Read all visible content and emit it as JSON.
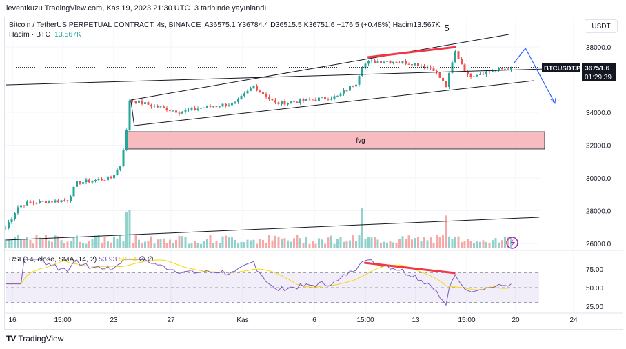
{
  "header": {
    "published": "leventkuzu TradingView.com, Kas 19, 2023 21:30 UTC+3 tarihinde yayınlandı"
  },
  "legend": {
    "symbol": "Bitcoin / TetherUS PERPETUAL CONTRACT, 4s, BINANCE",
    "ohlc": "A36575.1  Y36784.4  D36515.5  K36751.6  +176.5 (+0.48%)  Hacim13.567K",
    "volume_label": "Hacim · BTC",
    "volume_value": "13.567K"
  },
  "annotation_5": "5",
  "currency": "USDT",
  "fvg_label": "fvg",
  "price_tag": {
    "symbol": "BTCUSDT.P",
    "price": "36751.6",
    "countdown": "01:29:39"
  },
  "rsi": {
    "label": "RSI (14, close, SMA, 14, 2)",
    "value": "53.93",
    "sma": "50.04",
    "extra": "∅  ∅"
  },
  "footer": {
    "brand": "TradingView"
  },
  "colors": {
    "up": "#26a69a",
    "down": "#ef5350",
    "rsi": "#7e57c2",
    "rsi_sma": "#f5d90a",
    "fvg": "#f8bbc0",
    "red_line": "#f23645",
    "arrow": "#2962ff"
  },
  "chart_data": {
    "type": "candlestick",
    "y_ticks": [
      38000,
      34000,
      32000,
      30000,
      28000,
      26000
    ],
    "y_tick_labels": [
      "38000.0",
      "34000.0",
      "32000.0",
      "30000.0",
      "28000.0",
      "26000.0"
    ],
    "rsi_ticks": [
      "75.00",
      "50.00",
      "25.00"
    ],
    "x_ticks": [
      "16",
      "15:00",
      "23",
      "27",
      "Kas",
      "6",
      "15:00",
      "13",
      "15:00",
      "20",
      "24"
    ],
    "close_anchors": [
      [
        0,
        26970
      ],
      [
        4,
        28230
      ],
      [
        6,
        28440
      ],
      [
        20,
        28650
      ],
      [
        23,
        29700
      ],
      [
        34,
        30000
      ],
      [
        37,
        30760
      ],
      [
        39,
        32860
      ],
      [
        40,
        34760
      ],
      [
        49,
        34340
      ],
      [
        56,
        34040
      ],
      [
        65,
        34340
      ],
      [
        74,
        34550
      ],
      [
        80,
        35600
      ],
      [
        87,
        34550
      ],
      [
        98,
        34760
      ],
      [
        107,
        34970
      ],
      [
        113,
        35810
      ],
      [
        115,
        36860
      ],
      [
        117,
        37070
      ],
      [
        123,
        37160
      ],
      [
        132,
        36990
      ],
      [
        138,
        36650
      ],
      [
        142,
        35600
      ],
      [
        145,
        37700
      ],
      [
        149,
        36230
      ],
      [
        154,
        36440
      ],
      [
        163,
        36751.6
      ]
    ],
    "trendlines": [
      {
        "name": "channel-top",
        "p": [
          [
            40.4,
            34760
          ],
          [
            162.2,
            38760
          ]
        ]
      },
      {
        "name": "channel-bottom",
        "p": [
          [
            41.5,
            33200
          ],
          [
            170.4,
            35940
          ]
        ]
      },
      {
        "name": "channel-left",
        "p": [
          [
            40.4,
            34760
          ],
          [
            41.5,
            33200
          ]
        ]
      },
      {
        "name": "long-line-upper",
        "p": [
          [
            0,
            35680
          ],
          [
            173.8,
            36650
          ]
        ]
      },
      {
        "name": "long-line-lower",
        "p": [
          [
            0,
            26210
          ],
          [
            172,
            27600
          ]
        ]
      }
    ],
    "divergence_line": [
      [
        116.7,
        37370
      ],
      [
        145.3,
        38000
      ]
    ],
    "rsi_divergence_line": [
      [
        115.6,
        83.3
      ],
      [
        145,
        69.4
      ]
    ],
    "projection_arrow": [
      [
        163.8,
        36990
      ],
      [
        167.6,
        37920
      ],
      [
        177.1,
        34550
      ]
    ],
    "fvg_zone": {
      "from_bar": 39,
      "top": 32820,
      "bottom": 31770
    },
    "last_price": 36751.6
  }
}
